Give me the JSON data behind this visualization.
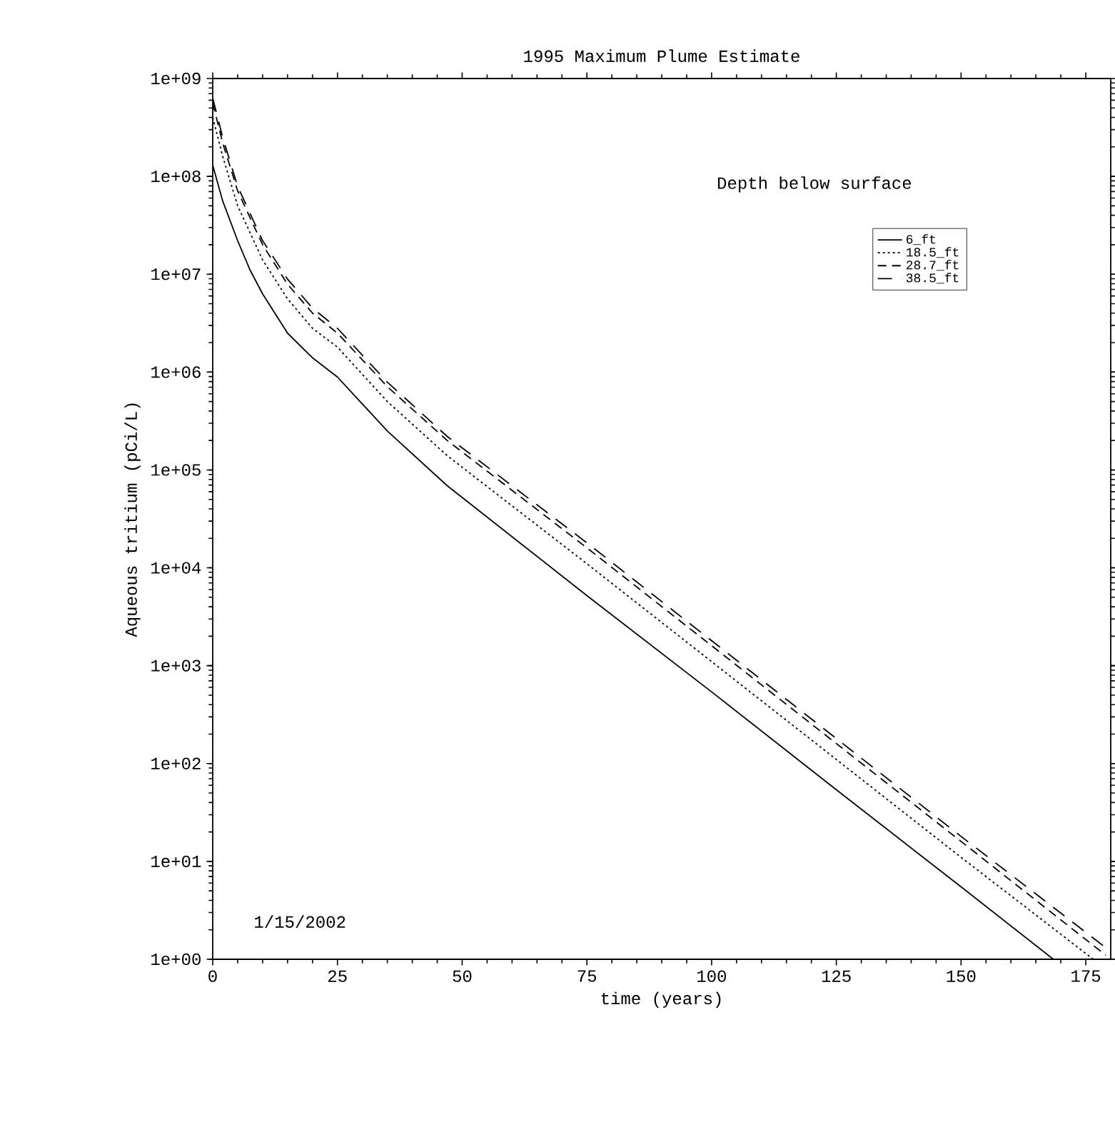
{
  "chart_data": {
    "type": "line",
    "title": "1995 Maximum Plume Estimate",
    "xlabel": "time (years)",
    "ylabel": "Aqueous tritium (pCi/L)",
    "legend_title": "Depth below surface",
    "legend": "top right",
    "log": "y",
    "grid": false,
    "xlim": [
      0,
      180
    ],
    "xticks": [
      0,
      25,
      50,
      75,
      100,
      125,
      150,
      175
    ],
    "ylim": [
      1,
      1000000000
    ],
    "yticks": [
      {
        "value": 1,
        "label": "1e+00"
      },
      {
        "value": 10,
        "label": "1e+01"
      },
      {
        "value": 100,
        "label": "1e+02"
      },
      {
        "value": 1000,
        "label": "1e+03"
      },
      {
        "value": 10000,
        "label": "1e+04"
      },
      {
        "value": 100000,
        "label": "1e+05"
      },
      {
        "value": 1000000,
        "label": "1e+06"
      },
      {
        "value": 10000000,
        "label": "1e+07"
      },
      {
        "value": 100000000,
        "label": "1e+08"
      },
      {
        "value": 1000000000,
        "label": "1e+09"
      }
    ],
    "x": [
      0,
      2,
      5,
      7.5,
      10,
      15,
      20,
      25,
      35,
      47,
      75,
      100,
      125,
      150,
      168.5
    ],
    "series": [
      {
        "name": "6_ft",
        "color": "#000000",
        "line_style": "solid",
        "values": [
          130000000.0,
          56000000.0,
          22000000.0,
          11000000.0,
          6300000.0,
          2500000.0,
          1400000.0,
          890000.0,
          250000.0,
          69000.0,
          5200,
          540,
          54,
          5.5,
          1
        ]
      },
      {
        "name": "18.5_ft",
        "color": "#000000",
        "line_style": "dotted",
        "x": [
          0,
          2,
          5,
          10,
          15,
          20,
          25,
          35,
          47,
          75,
          100,
          125,
          150,
          176.5
        ],
        "values": [
          400000000.0,
          160000000.0,
          50000000.0,
          14000000.0,
          5600000.0,
          2800000.0,
          1800000.0,
          500000.0,
          140000.0,
          11000,
          1100,
          110,
          11,
          1
        ]
      },
      {
        "name": "28.7_ft",
        "color": "#000000",
        "line_style": "dashed",
        "x": [
          0,
          2,
          5,
          10,
          15,
          20,
          25,
          35,
          47,
          75,
          100,
          125,
          150,
          179
        ],
        "values": [
          560000000.0,
          220000000.0,
          71000000.0,
          20000000.0,
          7900000.0,
          4000000.0,
          2500000.0,
          710000.0,
          200000.0,
          16000,
          1600,
          160,
          16,
          1.1
        ]
      },
      {
        "name": "38.5_ft",
        "color": "#000000",
        "line_style": "dashed",
        "x": [
          0,
          2,
          5,
          10,
          15,
          20,
          25,
          35,
          47,
          75,
          100,
          125,
          150,
          180
        ],
        "values": [
          630000000.0,
          250000000.0,
          79000000.0,
          22000000.0,
          8900000.0,
          4500000.0,
          2800000.0,
          790000.0,
          220000.0,
          18000,
          1800,
          180,
          18,
          1.2
        ]
      }
    ],
    "annotations": [
      "1/15/2002"
    ]
  }
}
